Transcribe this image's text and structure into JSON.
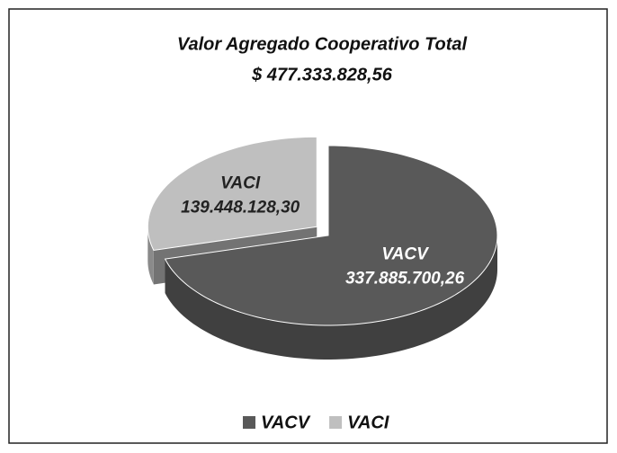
{
  "chart_data": {
    "type": "pie",
    "title": "Valor Agregado Cooperativo Total",
    "subtitle": "$ 477.333.828,56",
    "categories": [
      "VACV",
      "VACI"
    ],
    "values": [
      337885700.26,
      139448128.3
    ],
    "value_labels": [
      "337.885.700,26",
      "139.448.128,30"
    ],
    "colors": [
      "#595959",
      "#bfbfbf"
    ],
    "legend": "bottom"
  }
}
